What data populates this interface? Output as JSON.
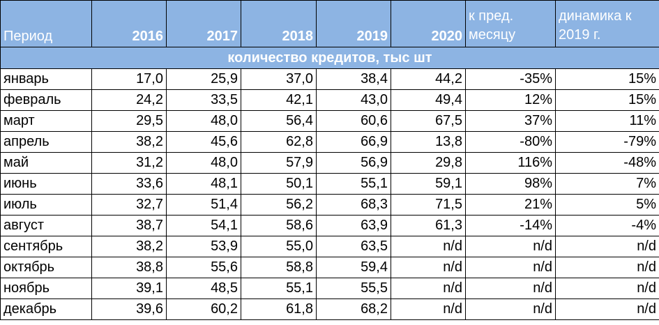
{
  "table": {
    "headers": {
      "period": "Период",
      "years": [
        "2016",
        "2017",
        "2018",
        "2019",
        "2020"
      ],
      "mom": "к пред. месяцу",
      "yoy": "динамика к 2019 г."
    },
    "section_title": "количество кредитов, тыс шт",
    "rows": [
      {
        "month": "январь",
        "v2016": "17,0",
        "v2017": "25,9",
        "v2018": "37,0",
        "v2019": "38,4",
        "v2020": "44,2",
        "mom": "-35%",
        "yoy": "15%"
      },
      {
        "month": "февраль",
        "v2016": "24,2",
        "v2017": "33,5",
        "v2018": "42,1",
        "v2019": "43,0",
        "v2020": "49,4",
        "mom": "12%",
        "yoy": "15%"
      },
      {
        "month": "март",
        "v2016": "29,5",
        "v2017": "48,0",
        "v2018": "56,4",
        "v2019": "60,6",
        "v2020": "67,5",
        "mom": "37%",
        "yoy": "11%"
      },
      {
        "month": "апрель",
        "v2016": "38,2",
        "v2017": "45,6",
        "v2018": "62,8",
        "v2019": "66,9",
        "v2020": "13,8",
        "mom": "-80%",
        "yoy": "-79%"
      },
      {
        "month": "май",
        "v2016": "31,2",
        "v2017": "48,0",
        "v2018": "57,9",
        "v2019": "56,9",
        "v2020": "29,8",
        "mom": "116%",
        "yoy": "-48%"
      },
      {
        "month": "июнь",
        "v2016": "33,6",
        "v2017": "48,1",
        "v2018": "50,1",
        "v2019": "55,1",
        "v2020": "59,1",
        "mom": "98%",
        "yoy": "7%"
      },
      {
        "month": "июль",
        "v2016": "32,7",
        "v2017": "51,4",
        "v2018": "56,2",
        "v2019": "68,3",
        "v2020": "71,5",
        "mom": "21%",
        "yoy": "5%"
      },
      {
        "month": "август",
        "v2016": "38,7",
        "v2017": "54,1",
        "v2018": "58,6",
        "v2019": "63,9",
        "v2020": "61,3",
        "mom": "-14%",
        "yoy": "-4%"
      },
      {
        "month": "сентябрь",
        "v2016": "38,2",
        "v2017": "53,9",
        "v2018": "55,0",
        "v2019": "63,5",
        "v2020": "n/d",
        "mom": "n/d",
        "yoy": "n/d"
      },
      {
        "month": "октябрь",
        "v2016": "38,8",
        "v2017": "55,6",
        "v2018": "58,8",
        "v2019": "59,4",
        "v2020": "n/d",
        "mom": "n/d",
        "yoy": "n/d"
      },
      {
        "month": "ноябрь",
        "v2016": "39,1",
        "v2017": "48,5",
        "v2018": "55,1",
        "v2019": "55,5",
        "v2020": "n/d",
        "mom": "n/d",
        "yoy": "n/d"
      },
      {
        "month": "декабрь",
        "v2016": "39,6",
        "v2017": "60,2",
        "v2018": "61,8",
        "v2019": "68,2",
        "v2020": "n/d",
        "mom": "n/d",
        "yoy": "n/d"
      }
    ]
  },
  "colors": {
    "header_bg": "#8db4e3",
    "header_text": "#ffffff",
    "border": "#000000"
  }
}
